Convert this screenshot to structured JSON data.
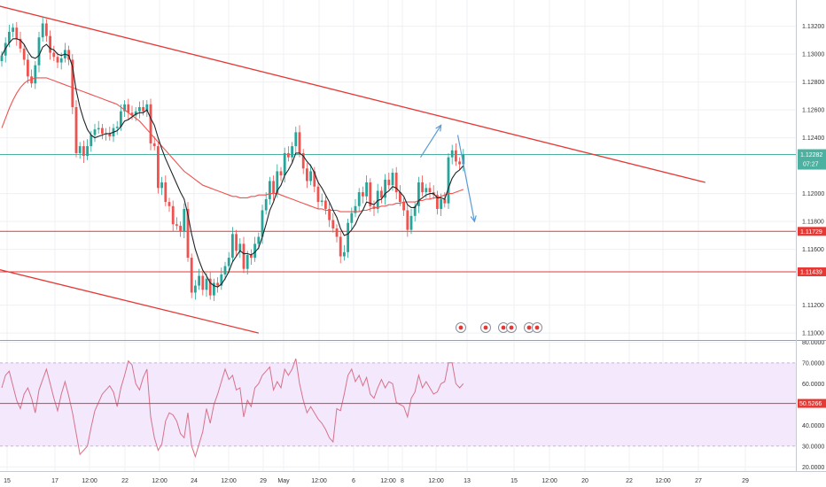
{
  "chart_data": [
    {
      "type": "line",
      "pane": "price",
      "x_ticks": [
        "15",
        "17",
        "12:00",
        "22",
        "12:00",
        "24",
        "12:00",
        "29",
        "May",
        "12:00",
        "6",
        "12:00",
        "8",
        "12:00",
        "13",
        "15",
        "12:00",
        "20",
        "22",
        "12:00",
        "27",
        "29"
      ],
      "y_ticks": [
        "1.13200",
        "1.13000",
        "1.12800",
        "1.12600",
        "1.12400",
        "1.12000",
        "1.11800",
        "1.11600",
        "1.11200",
        "1.11000"
      ],
      "ylim": [
        1.1095,
        1.1335
      ],
      "price_tag": {
        "value": "1.12282",
        "countdown": "07:27",
        "color": "#4cb1a0"
      },
      "levels": [
        {
          "value": 1.11729,
          "label": "1.11729",
          "color": "#e53935"
        },
        {
          "value": 1.11439,
          "label": "1.11439",
          "color": "#e53935"
        }
      ],
      "current_level": {
        "value": 1.1228,
        "color": "#4cb1a0"
      },
      "trendlines": [
        {
          "from": [
            -3,
            1.1336
          ],
          "to": [
            189,
            1.1208
          ],
          "color": "#e53935"
        },
        {
          "from": [
            -3,
            1.1147
          ],
          "to": [
            69,
            1.11
          ],
          "color": "#e53935"
        }
      ],
      "projection_arrows": [
        {
          "from": [
            112.5,
            1.1226
          ],
          "to": [
            118,
            1.1249
          ],
          "color": "#5b9bd5"
        },
        {
          "from": [
            122.5,
            1.1242
          ],
          "to": [
            127,
            1.118
          ],
          "color": "#5b9bd5"
        }
      ],
      "close_series": [
        1.1299,
        1.1308,
        1.1316,
        1.1319,
        1.1311,
        1.1304,
        1.1296,
        1.1284,
        1.1279,
        1.1292,
        1.1312,
        1.1322,
        1.1313,
        1.1301,
        1.1298,
        1.1294,
        1.1297,
        1.1303,
        1.1296,
        1.1262,
        1.1229,
        1.1234,
        1.1227,
        1.1234,
        1.1242,
        1.1246,
        1.1247,
        1.1243,
        1.1243,
        1.1241,
        1.1247,
        1.1248,
        1.1259,
        1.1264,
        1.1258,
        1.1256,
        1.1259,
        1.1262,
        1.1259,
        1.1264,
        1.1236,
        1.1234,
        1.1204,
        1.1208,
        1.1194,
        1.1191,
        1.1178,
        1.1177,
        1.1173,
        1.1189,
        1.1154,
        1.1129,
        1.1134,
        1.1141,
        1.1131,
        1.1139,
        1.1127,
        1.1136,
        1.1134,
        1.1142,
        1.1148,
        1.1154,
        1.1171,
        1.1159,
        1.1164,
        1.1146,
        1.1156,
        1.1154,
        1.1164,
        1.1169,
        1.1188,
        1.1196,
        1.1209,
        1.12,
        1.1216,
        1.1213,
        1.1229,
        1.1226,
        1.1234,
        1.1244,
        1.1229,
        1.1218,
        1.1209,
        1.1216,
        1.1205,
        1.1194,
        1.1195,
        1.1189,
        1.1181,
        1.1175,
        1.1169,
        1.1155,
        1.1158,
        1.1179,
        1.1186,
        1.1191,
        1.1201,
        1.1198,
        1.1208,
        1.1191,
        1.1189,
        1.1202,
        1.1197,
        1.121,
        1.1206,
        1.1215,
        1.1201,
        1.1194,
        1.1188,
        1.1174,
        1.1184,
        1.1191,
        1.1208,
        1.1201,
        1.1204,
        1.1201,
        1.1199,
        1.1189,
        1.1196,
        1.1193,
        1.1226,
        1.1231,
        1.1223,
        1.1221,
        1.1228
      ],
      "ma_fast": [
        1.1299,
        1.1304,
        1.1308,
        1.1311,
        1.1311,
        1.131,
        1.1307,
        1.1302,
        1.1298,
        1.1297,
        1.1299,
        1.1305,
        1.1307,
        1.1304,
        1.1303,
        1.13,
        1.1299,
        1.13,
        1.1299,
        1.1291,
        1.1274,
        1.1262,
        1.1253,
        1.1246,
        1.1242,
        1.124,
        1.1241,
        1.1242,
        1.1243,
        1.1243,
        1.1244,
        1.1245,
        1.1248,
        1.1252,
        1.1253,
        1.1255,
        1.1257,
        1.1258,
        1.1258,
        1.126,
        1.1254,
        1.1249,
        1.124,
        1.1232,
        1.1225,
        1.1219,
        1.1213,
        1.1207,
        1.1201,
        1.1196,
        1.1185,
        1.1171,
        1.116,
        1.1152,
        1.1145,
        1.1141,
        1.1136,
        1.1134,
        1.1133,
        1.1135,
        1.1139,
        1.1144,
        1.1151,
        1.1155,
        1.1159,
        1.1157,
        1.1157,
        1.1156,
        1.1158,
        1.1161,
        1.1169,
        1.1178,
        1.1188,
        1.1194,
        1.1202,
        1.1206,
        1.1213,
        1.1217,
        1.1222,
        1.1229,
        1.1229,
        1.1227,
        1.1223,
        1.122,
        1.1215,
        1.1208,
        1.1204,
        1.1199,
        1.1194,
        1.1188,
        1.1183,
        1.1175,
        1.117,
        1.1171,
        1.1174,
        1.1178,
        1.1184,
        1.1188,
        1.1194,
        1.1193,
        1.1192,
        1.1195,
        1.1196,
        1.12,
        1.1202,
        1.1205,
        1.1204,
        1.1201,
        1.1198,
        1.1192,
        1.119,
        1.119,
        1.1195,
        1.1197,
        1.1199,
        1.12,
        1.12,
        1.1197,
        1.1197,
        1.1196,
        1.1204,
        1.1211,
        1.1215,
        1.1217,
        1.122
      ],
      "ma_slow": [
        1.1247,
        1.1254,
        1.1261,
        1.1267,
        1.1272,
        1.1276,
        1.1279,
        1.1281,
        1.1282,
        1.1283,
        1.1283,
        1.1283,
        1.1283,
        1.1282,
        1.1281,
        1.128,
        1.1279,
        1.1278,
        1.1277,
        1.1276,
        1.1275,
        1.1274,
        1.1273,
        1.1272,
        1.1271,
        1.127,
        1.1269,
        1.1268,
        1.1267,
        1.1266,
        1.1265,
        1.1264,
        1.1262,
        1.126,
        1.1258,
        1.1256,
        1.1254,
        1.1252,
        1.1249,
        1.1246,
        1.1243,
        1.124,
        1.1237,
        1.1234,
        1.1231,
        1.1228,
        1.1225,
        1.1222,
        1.1219,
        1.1216,
        1.1214,
        1.1212,
        1.121,
        1.1208,
        1.1206,
        1.1205,
        1.1204,
        1.1203,
        1.1202,
        1.1201,
        1.12,
        1.1199,
        1.1198,
        1.1198,
        1.1197,
        1.1197,
        1.1197,
        1.1198,
        1.1198,
        1.1199,
        1.1199,
        1.1199,
        1.12,
        1.12,
        1.12,
        1.1199,
        1.1198,
        1.1197,
        1.1196,
        1.1195,
        1.1194,
        1.1193,
        1.1192,
        1.1191,
        1.119,
        1.1189,
        1.1189,
        1.1188,
        1.1188,
        1.1188,
        1.1188,
        1.1187,
        1.1187,
        1.1187,
        1.1187,
        1.1187,
        1.1187,
        1.1188,
        1.1188,
        1.1189,
        1.119,
        1.119,
        1.1191,
        1.1191,
        1.1192,
        1.1192,
        1.1193,
        1.1193,
        1.1194,
        1.1194,
        1.1194,
        1.1194,
        1.1195,
        1.1195,
        1.1196,
        1.1196,
        1.1197,
        1.1197,
        1.1198,
        1.1199,
        1.12,
        1.12,
        1.1201,
        1.1202,
        1.1203
      ]
    },
    {
      "type": "line",
      "pane": "rsi",
      "y_ticks": [
        "80.0000",
        "70.0000",
        "60.0000",
        "50.0000",
        "40.0000",
        "30.0000",
        "20.0000"
      ],
      "ylim": [
        18,
        81
      ],
      "value_tag": {
        "value": "50.5266",
        "color": "#e53935"
      },
      "band": [
        30,
        70
      ],
      "midline": {
        "value": 50.5266,
        "color": "#e53935"
      },
      "values": [
        58,
        64,
        66,
        59,
        52,
        48,
        55,
        58,
        53,
        46,
        57,
        62,
        67,
        60,
        53,
        47,
        55,
        61,
        54,
        46,
        36,
        26,
        28,
        30,
        39,
        47,
        51,
        55,
        57,
        59,
        56,
        49,
        58,
        64,
        71,
        69,
        60,
        57,
        63,
        67,
        44,
        34,
        28,
        31,
        42,
        46,
        45,
        42,
        36,
        34,
        46,
        30,
        25,
        31,
        37,
        48,
        41,
        50,
        55,
        61,
        67,
        62,
        64,
        57,
        58,
        44,
        52,
        49,
        58,
        60,
        64,
        66,
        68,
        57,
        61,
        58,
        67,
        64,
        67,
        72,
        60,
        52,
        46,
        49,
        46,
        43,
        41,
        38,
        34,
        32,
        48,
        47,
        55,
        64,
        67,
        61,
        64,
        59,
        63,
        55,
        53,
        58,
        62,
        58,
        61,
        60,
        51,
        50,
        49,
        44,
        53,
        56,
        64,
        58,
        61,
        58,
        55,
        56,
        60,
        61,
        70,
        70,
        60,
        58,
        60
      ]
    }
  ]
}
